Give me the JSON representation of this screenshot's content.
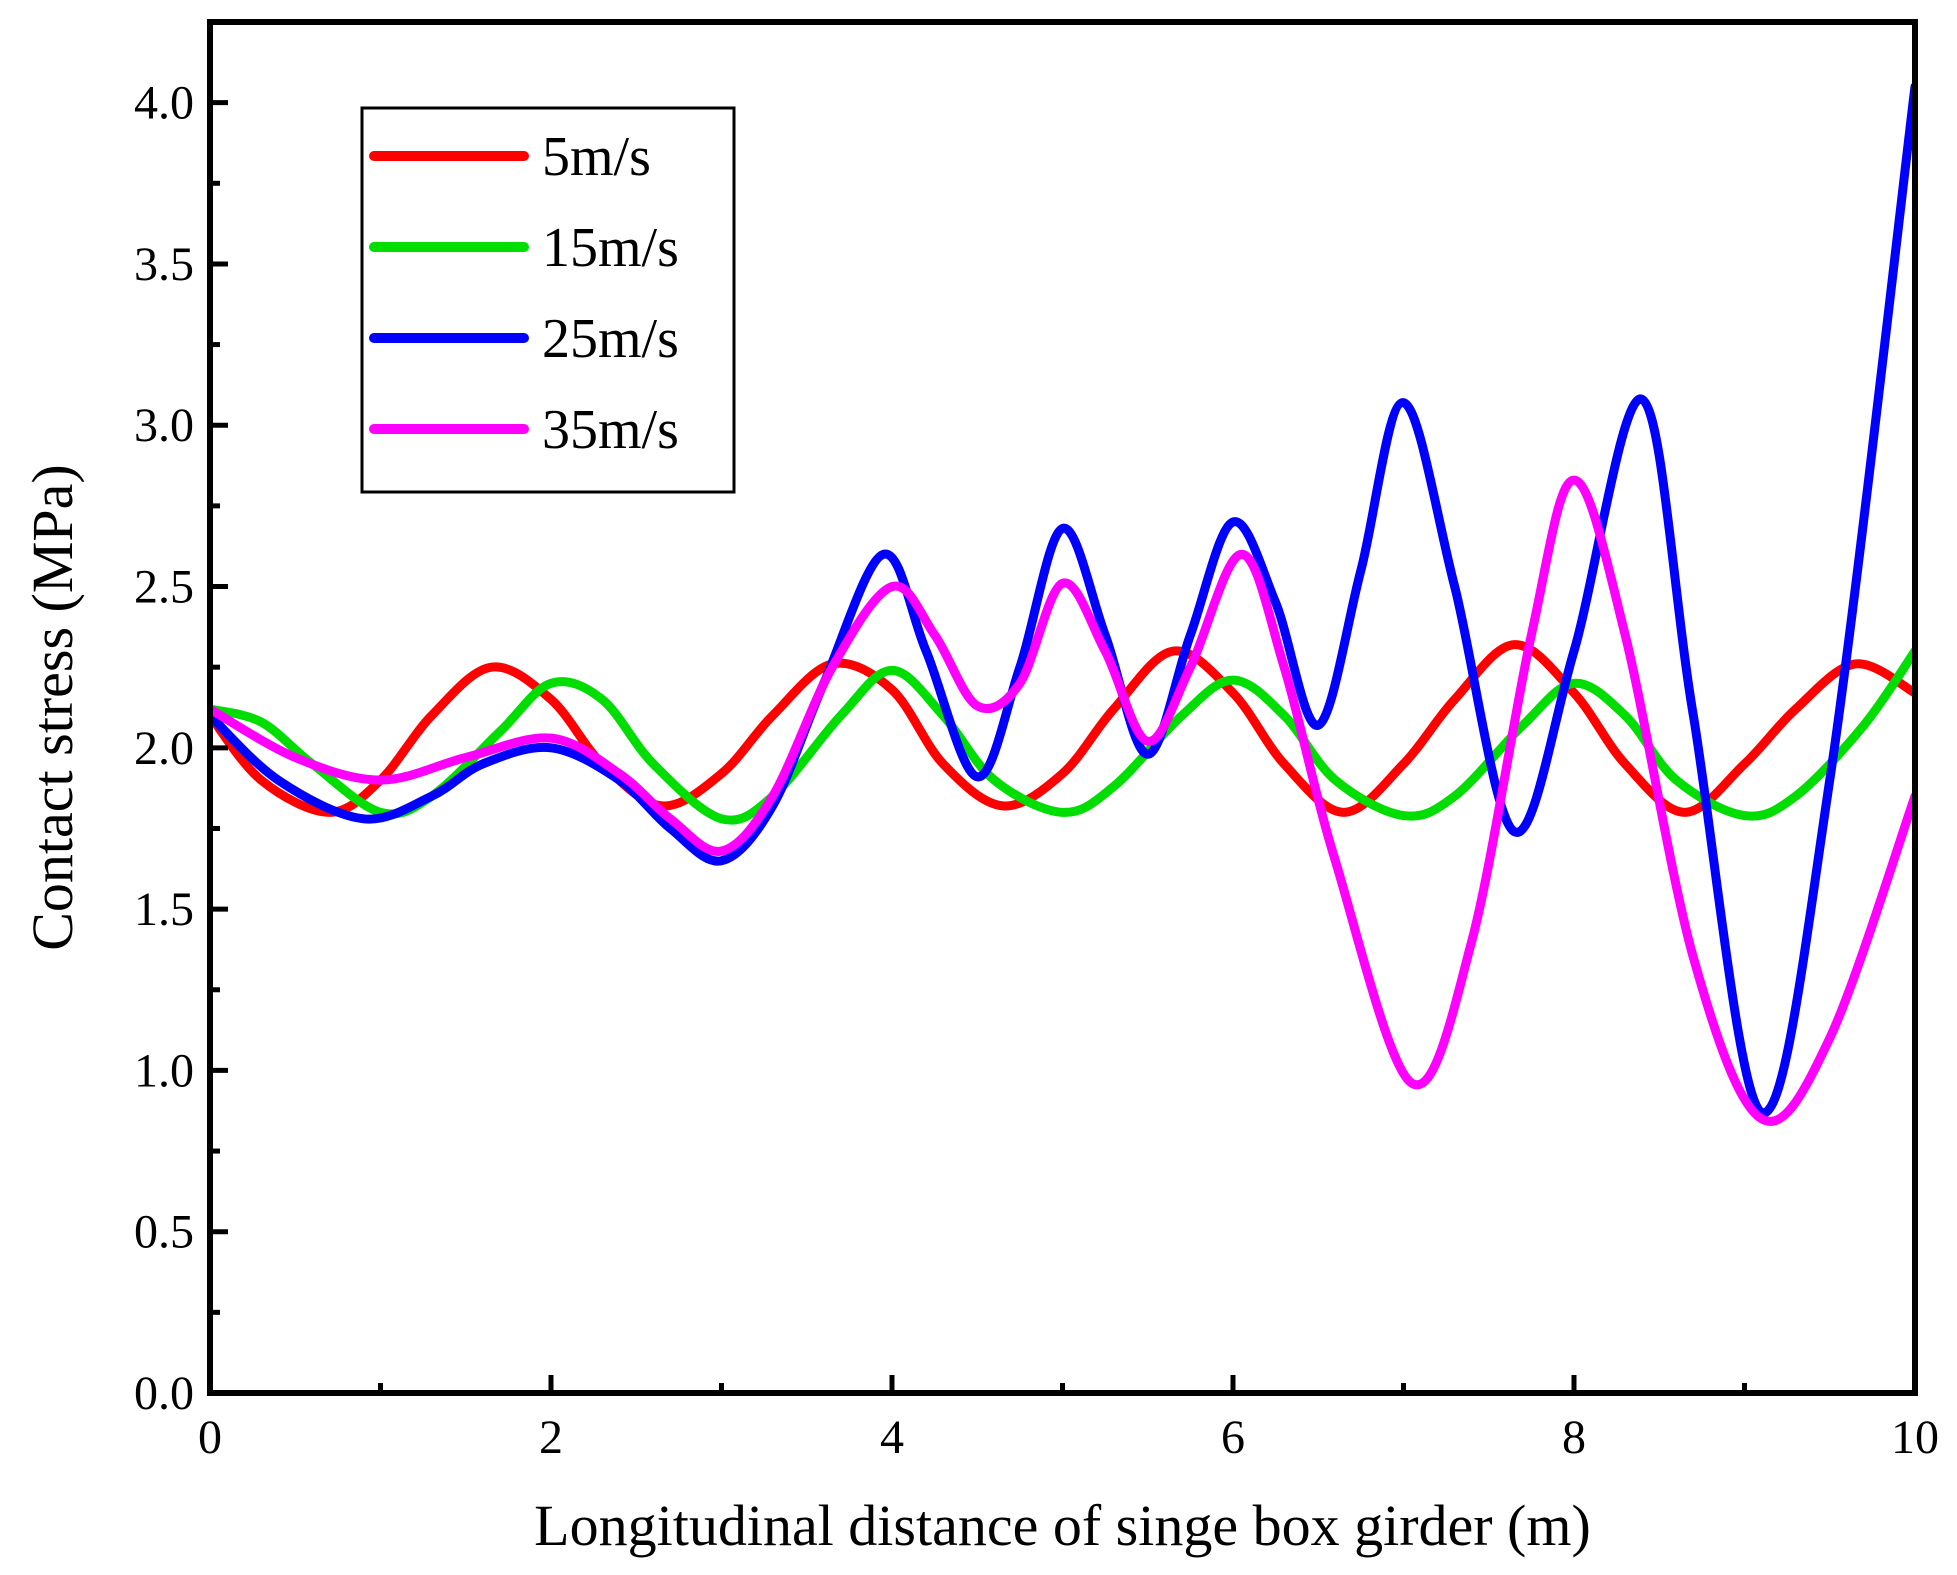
{
  "chart_data": {
    "type": "line",
    "title": "",
    "xlabel": "Longitudinal distance of singe box girder (m)",
    "ylabel": "Contact stress (MPa)",
    "xlim": [
      0,
      10
    ],
    "ylim": [
      0,
      4.25
    ],
    "x_ticks": [
      0,
      2,
      4,
      6,
      8,
      10
    ],
    "x_tick_labels": [
      "0",
      "2",
      "4",
      "6",
      "8",
      "10"
    ],
    "y_ticks": [
      0.0,
      0.5,
      1.0,
      1.5,
      2.0,
      2.5,
      3.0,
      3.5,
      4.0
    ],
    "y_tick_labels": [
      "0.0",
      "0.5",
      "1.0",
      "1.5",
      "2.0",
      "2.5",
      "3.0",
      "3.5",
      "4.0"
    ],
    "grid": false,
    "legend_position": "top-left",
    "series": [
      {
        "name": "5m/s",
        "color": "#ff0000",
        "x": [
          0,
          0.3,
          0.7,
          1.0,
          1.3,
          1.65,
          2.0,
          2.3,
          2.65,
          3.0,
          3.3,
          3.65,
          4.0,
          4.3,
          4.65,
          5.0,
          5.3,
          5.65,
          6.0,
          6.3,
          6.65,
          7.0,
          7.3,
          7.65,
          8.0,
          8.3,
          8.65,
          9.0,
          9.3,
          9.65,
          10.0
        ],
        "values": [
          2.1,
          1.9,
          1.8,
          1.9,
          2.1,
          2.25,
          2.15,
          1.95,
          1.82,
          1.92,
          2.1,
          2.26,
          2.18,
          1.95,
          1.82,
          1.92,
          2.12,
          2.3,
          2.17,
          1.95,
          1.8,
          1.95,
          2.15,
          2.32,
          2.17,
          1.95,
          1.8,
          1.95,
          2.12,
          2.26,
          2.17
        ]
      },
      {
        "name": "15m/s",
        "color": "#00dd00",
        "x": [
          0,
          0.3,
          0.6,
          1.0,
          1.3,
          1.7,
          2.0,
          2.3,
          2.6,
          3.0,
          3.3,
          3.7,
          4.0,
          4.3,
          4.6,
          5.0,
          5.3,
          5.7,
          6.0,
          6.3,
          6.6,
          7.0,
          7.3,
          7.7,
          8.0,
          8.3,
          8.6,
          9.0,
          9.3,
          9.7,
          10.0
        ],
        "values": [
          2.12,
          2.08,
          1.95,
          1.8,
          1.85,
          2.05,
          2.2,
          2.15,
          1.95,
          1.78,
          1.85,
          2.1,
          2.24,
          2.1,
          1.9,
          1.8,
          1.88,
          2.1,
          2.21,
          2.1,
          1.9,
          1.79,
          1.85,
          2.07,
          2.2,
          2.1,
          1.9,
          1.79,
          1.85,
          2.07,
          2.3
        ]
      },
      {
        "name": "25m/s",
        "color": "#0000ff",
        "x": [
          0,
          0.4,
          0.9,
          1.3,
          1.6,
          2.0,
          2.4,
          2.7,
          3.0,
          3.3,
          3.6,
          3.95,
          4.2,
          4.5,
          4.75,
          5.0,
          5.25,
          5.5,
          5.75,
          6.0,
          6.25,
          6.5,
          6.75,
          7.0,
          7.3,
          7.65,
          8.0,
          8.4,
          8.7,
          9.1,
          9.5,
          10.0
        ],
        "values": [
          2.1,
          1.9,
          1.78,
          1.85,
          1.95,
          2.0,
          1.9,
          1.75,
          1.65,
          1.82,
          2.2,
          2.6,
          2.3,
          1.91,
          2.25,
          2.68,
          2.35,
          1.98,
          2.35,
          2.7,
          2.45,
          2.07,
          2.55,
          3.07,
          2.5,
          1.74,
          2.3,
          3.08,
          2.1,
          0.87,
          1.9,
          4.05
        ]
      },
      {
        "name": "35m/s",
        "color": "#ff00ff",
        "x": [
          0,
          0.5,
          1.0,
          1.5,
          2.0,
          2.4,
          2.7,
          3.0,
          3.3,
          3.65,
          4.0,
          4.25,
          4.5,
          4.75,
          5.0,
          5.25,
          5.5,
          5.75,
          6.05,
          6.3,
          6.6,
          7.05,
          7.4,
          7.75,
          8.0,
          8.3,
          8.7,
          9.1,
          9.5,
          10.0
        ],
        "values": [
          2.12,
          1.97,
          1.9,
          1.97,
          2.03,
          1.92,
          1.78,
          1.68,
          1.85,
          2.25,
          2.5,
          2.35,
          2.13,
          2.2,
          2.51,
          2.3,
          2.02,
          2.25,
          2.6,
          2.25,
          1.65,
          0.96,
          1.4,
          2.35,
          2.83,
          2.35,
          1.35,
          0.85,
          1.1,
          1.85
        ]
      }
    ]
  }
}
